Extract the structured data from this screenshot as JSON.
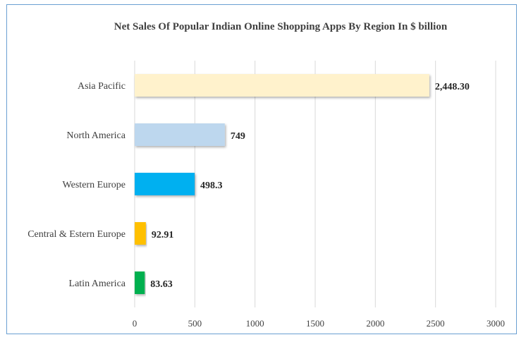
{
  "chart_data": {
    "type": "bar",
    "orientation": "horizontal",
    "title": "Net Sales Of Popular Indian  Online  Shopping  Apps  By Region In  $ billion",
    "categories": [
      "Asia Pacific",
      "North America",
      "Western Europe",
      "Central & Estern Europe",
      "Latin America"
    ],
    "values": [
      2448.3,
      749,
      498.3,
      92.91,
      83.63
    ],
    "value_labels": [
      "2,448.30",
      "749",
      "498.3",
      "92.91",
      "83.63"
    ],
    "colors": [
      "#fff2cc",
      "#bdd7ee",
      "#00b0f0",
      "#ffc000",
      "#00b050"
    ],
    "xlim": [
      0,
      3000
    ],
    "xticks": [
      0,
      500,
      1000,
      1500,
      2000,
      2500,
      3000
    ],
    "grid": true,
    "legend": "none"
  }
}
